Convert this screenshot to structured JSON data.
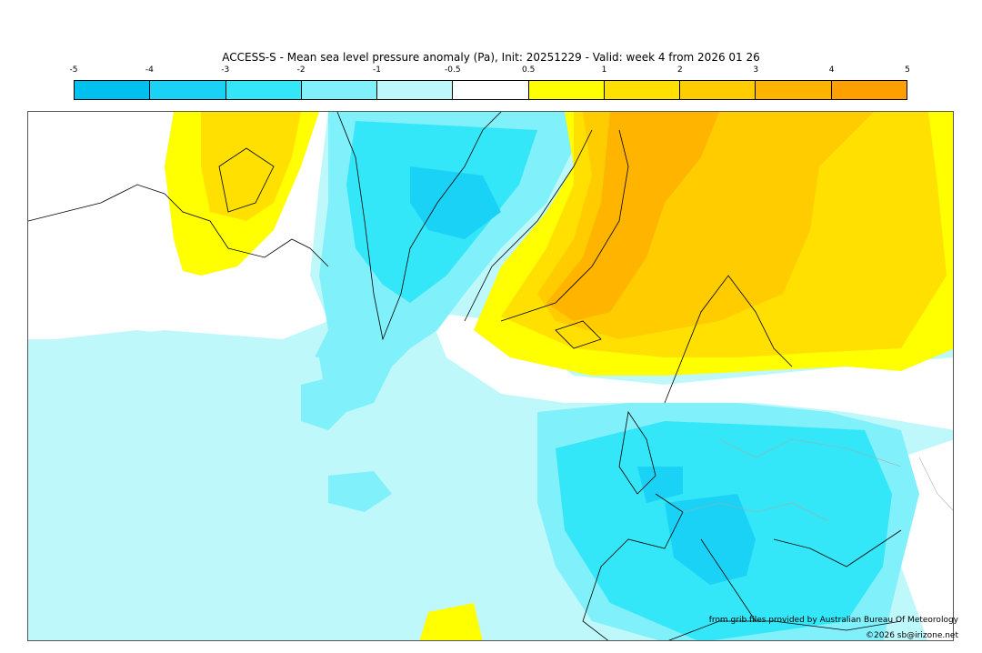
{
  "title": "ACCESS-S - Mean sea level pressure anomaly (Pa), Init: 20251229 - Valid: week 4 from 2026 01 26",
  "legend": {
    "ticks": [
      "-5",
      "-4",
      "-3",
      "-2",
      "-1",
      "-0.5",
      "0.5",
      "1",
      "2",
      "3",
      "4",
      "5"
    ],
    "bins": [
      {
        "from": -5,
        "to": -4,
        "color": "#00c0f0"
      },
      {
        "from": -4,
        "to": -3,
        "color": "#1ad2f6"
      },
      {
        "from": -3,
        "to": -2,
        "color": "#33e6f8"
      },
      {
        "from": -2,
        "to": -1,
        "color": "#80f0fa"
      },
      {
        "from": -1,
        "to": -0.5,
        "color": "#bff8fb"
      },
      {
        "from": -0.5,
        "to": 0.5,
        "color": "#ffffff"
      },
      {
        "from": 0.5,
        "to": 1,
        "color": "#ffff00"
      },
      {
        "from": 1,
        "to": 2,
        "color": "#ffe000"
      },
      {
        "from": 2,
        "to": 3,
        "color": "#ffcc00"
      },
      {
        "from": 3,
        "to": 4,
        "color": "#ffb400"
      },
      {
        "from": 4,
        "to": 5,
        "color": "#ffa000"
      }
    ]
  },
  "map": {
    "region": "North Atlantic and Europe",
    "field": "mean-sea-level-pressure-anomaly",
    "coastline_color": "#000000",
    "border_color": "#aaaaaa"
  },
  "credits": {
    "source": "from grib files provided by Australian Bureau Of Meteorology",
    "copyright": "©2026 sb@irizone.net"
  }
}
